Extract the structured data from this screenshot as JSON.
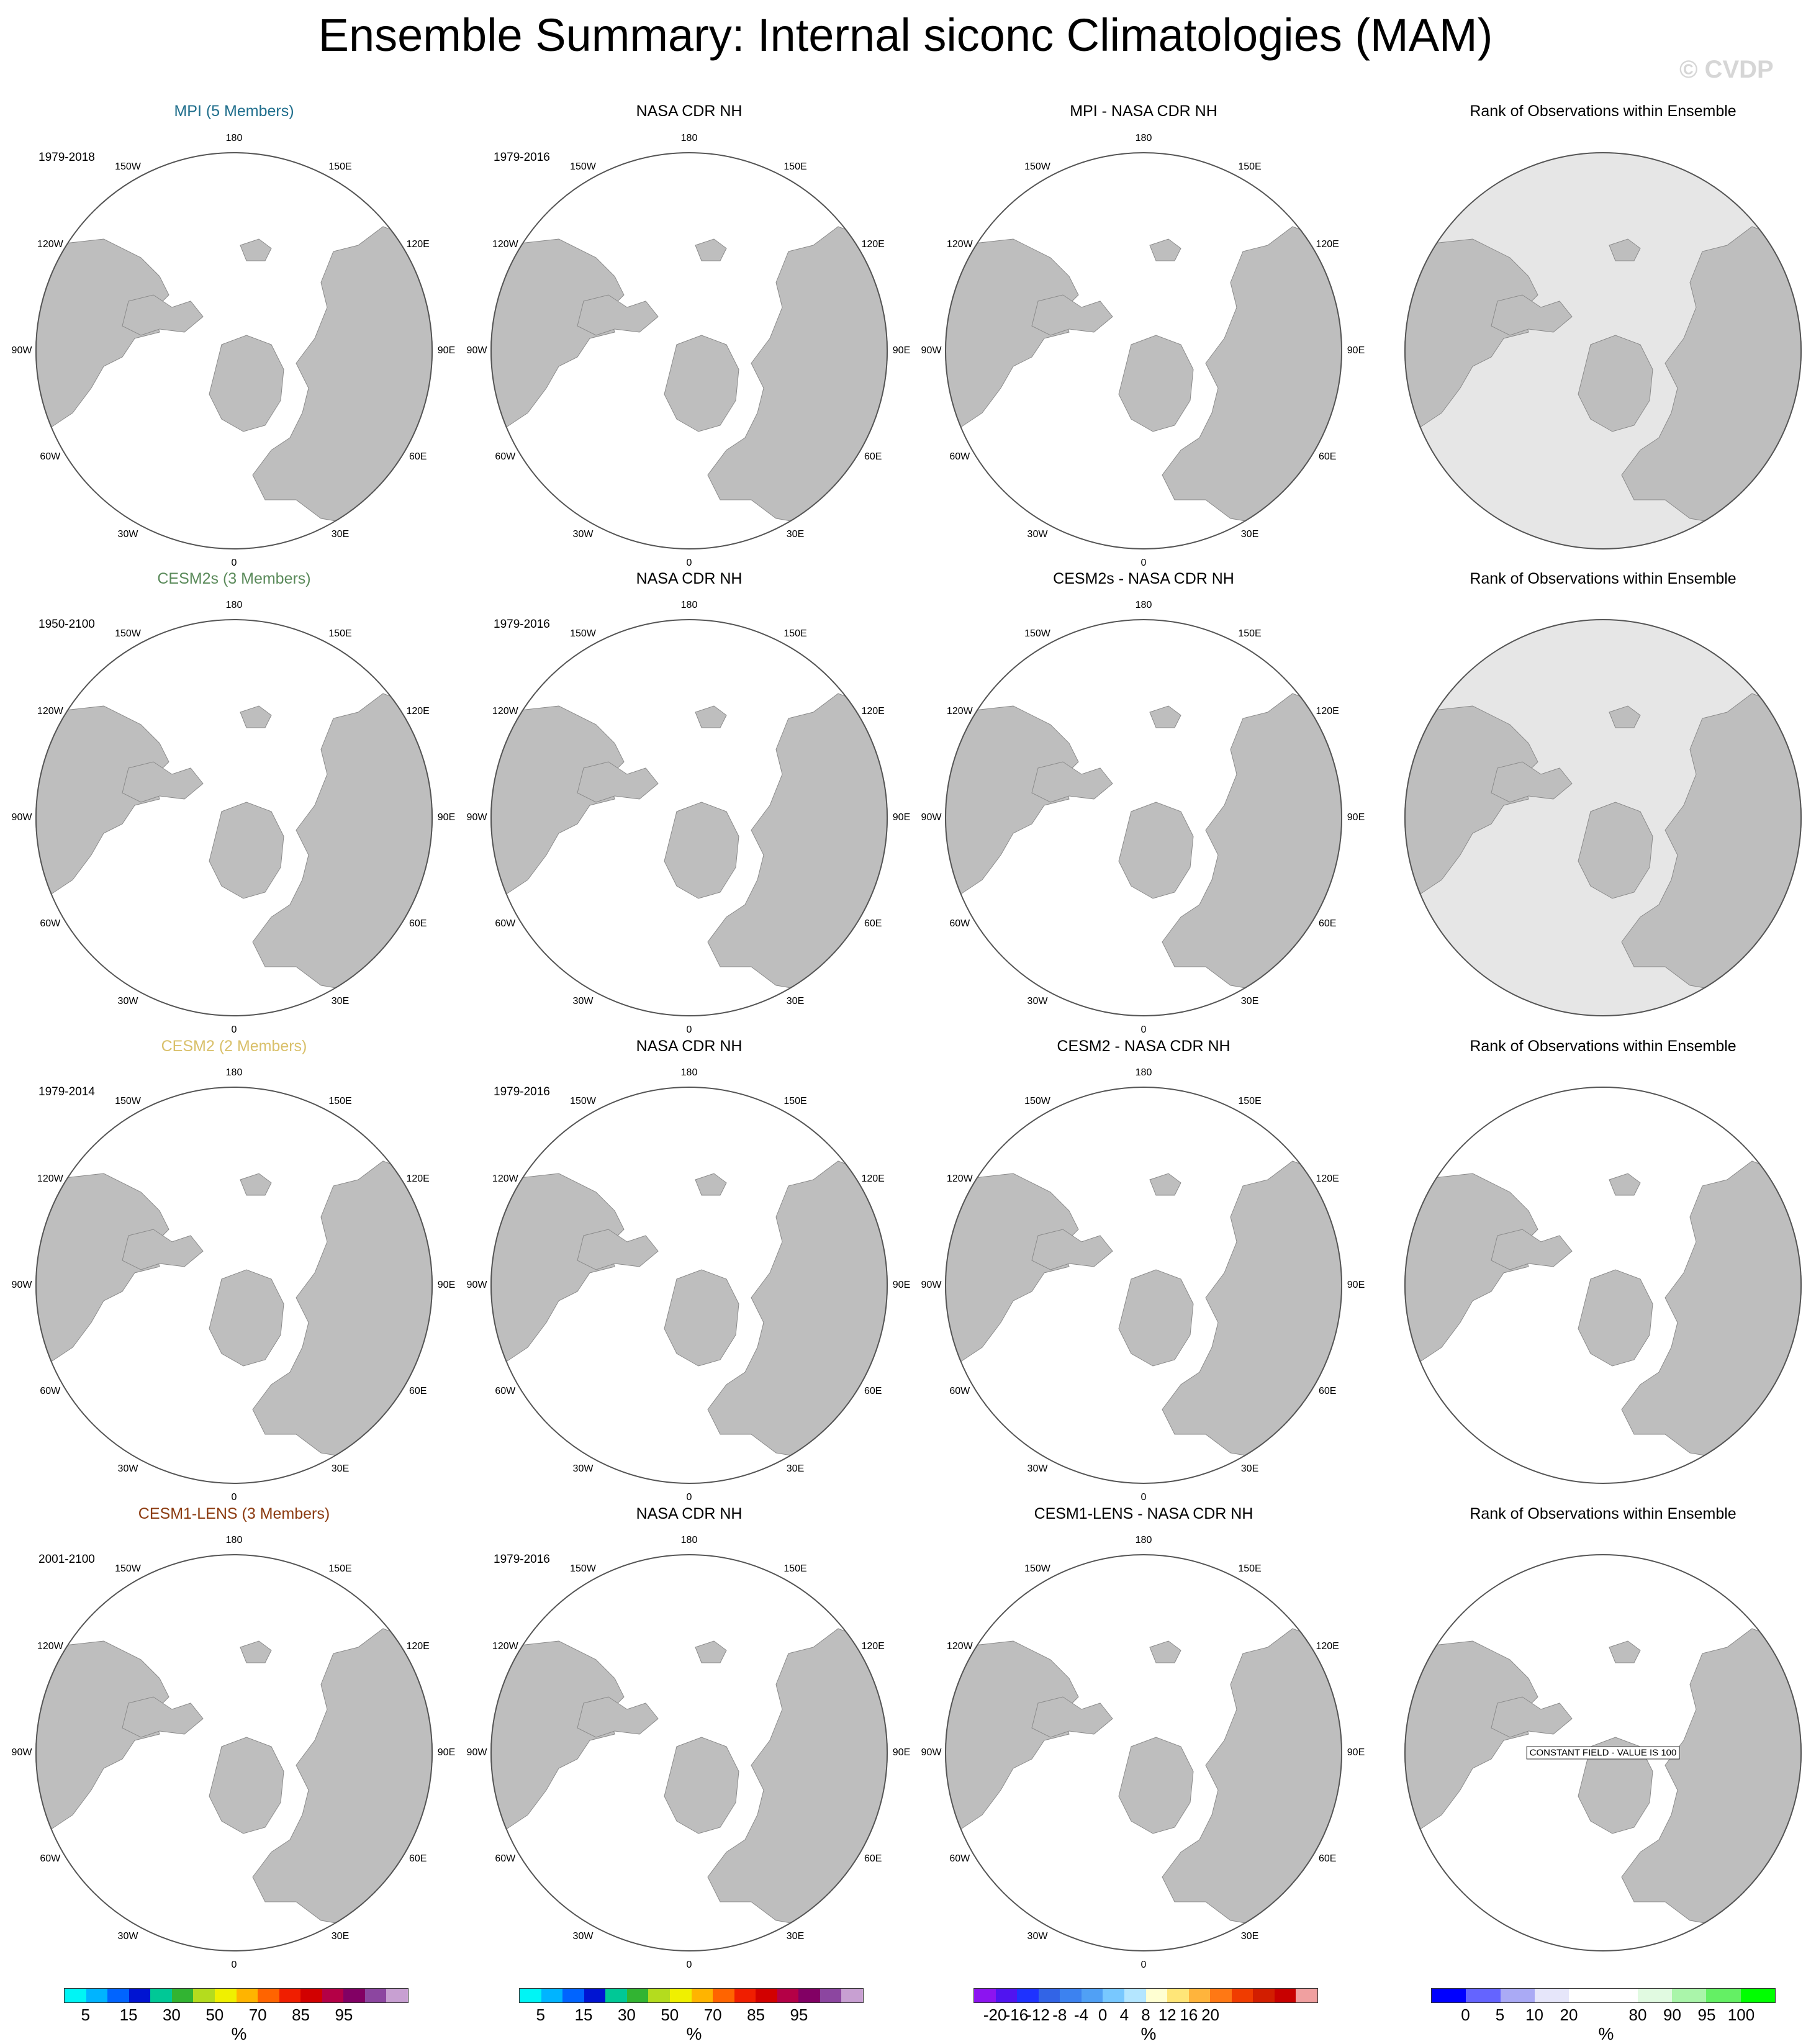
{
  "title": "Ensemble Summary: Internal siconc Climatologies (MAM)",
  "watermark": "© CVDP",
  "colors": {
    "land": "#bebebe",
    "ocean": "#ffffff",
    "highlight_ocean": "#e6e6e6"
  },
  "lon_labels": [
    "180",
    "150E",
    "120E",
    "90E",
    "60E",
    "30E",
    "0",
    "30W",
    "60W",
    "90W",
    "120W",
    "150W"
  ],
  "rows": [
    {
      "col_titles": [
        "MPI (5 Members)",
        "NASA CDR NH",
        "MPI - NASA CDR NH",
        "Rank of Observations within Ensemble"
      ],
      "model_color": "#1f6e8c",
      "model_period": "1979-2018",
      "obs_period": "1979-2016",
      "rank_bg": "grey",
      "constant": ""
    },
    {
      "col_titles": [
        "CESM2s (3 Members)",
        "NASA CDR NH",
        "CESM2s - NASA CDR NH",
        "Rank of Observations within Ensemble"
      ],
      "model_color": "#5a8a5a",
      "model_period": "1950-2100",
      "obs_period": "1979-2016",
      "rank_bg": "grey",
      "constant": ""
    },
    {
      "col_titles": [
        "CESM2 (2 Members)",
        "NASA CDR NH",
        "CESM2 - NASA CDR NH",
        "Rank of Observations within Ensemble"
      ],
      "model_color": "#d9c06a",
      "model_period": "1979-2014",
      "obs_period": "1979-2016",
      "rank_bg": "white",
      "constant": ""
    },
    {
      "col_titles": [
        "CESM1-LENS (3 Members)",
        "NASA CDR NH",
        "CESM1-LENS - NASA CDR NH",
        "Rank of Observations within Ensemble"
      ],
      "model_color": "#8b3a0f",
      "model_period": "2001-2100",
      "obs_period": "1979-2016",
      "rank_bg": "white",
      "constant": "CONSTANT FIELD - VALUE IS 100"
    }
  ],
  "colorbars": [
    {
      "colors": [
        "#00f5f5",
        "#00b4ff",
        "#0064ff",
        "#0014d2",
        "#00c896",
        "#32b432",
        "#b4dc1e",
        "#f0f000",
        "#ffb400",
        "#ff6400",
        "#f01e00",
        "#d20000",
        "#b40046",
        "#820064",
        "#8c46a0",
        "#c8a0d2"
      ],
      "labels": [
        "5",
        "15",
        "30",
        "50",
        "70",
        "85",
        "95"
      ],
      "label_idx": [
        1,
        3,
        5,
        7,
        9,
        11,
        13
      ],
      "unit": "%"
    },
    {
      "colors": [
        "#00f5f5",
        "#00b4ff",
        "#0064ff",
        "#0014d2",
        "#00c896",
        "#32b432",
        "#b4dc1e",
        "#f0f000",
        "#ffb400",
        "#ff6400",
        "#f01e00",
        "#d20000",
        "#b40046",
        "#820064",
        "#8c46a0",
        "#c8a0d2"
      ],
      "labels": [
        "5",
        "15",
        "30",
        "50",
        "70",
        "85",
        "95"
      ],
      "label_idx": [
        1,
        3,
        5,
        7,
        9,
        11,
        13
      ],
      "unit": "%"
    },
    {
      "colors": [
        "#8c14f0",
        "#5014f0",
        "#1e32ff",
        "#3264e6",
        "#3c82f0",
        "#50a0f5",
        "#78c8ff",
        "#b4e6ff",
        "#ffffd2",
        "#ffe678",
        "#ffb43c",
        "#ff7814",
        "#f03c00",
        "#d21e00",
        "#c80000",
        "#f0a0a0"
      ],
      "labels": [
        "-20",
        "-16",
        "-12",
        "-8",
        "-4",
        "0",
        "4",
        "8",
        "12",
        "16",
        "20"
      ],
      "label_idx": [
        1,
        2,
        3,
        4,
        5,
        6,
        7,
        8,
        9,
        10,
        11
      ],
      "unit": "%"
    },
    {
      "colors": [
        "#0000ff",
        "#6464ff",
        "#aaaaf5",
        "#e6e6fa",
        "#ffffff",
        "#ffffff",
        "#e1fae1",
        "#aaf5aa",
        "#64f064",
        "#00ff00"
      ],
      "labels": [
        "0",
        "5",
        "10",
        "20",
        "80",
        "90",
        "95",
        "100"
      ],
      "label_idx": [
        1,
        2,
        3,
        4,
        6,
        7,
        8,
        9
      ],
      "unit": "%"
    }
  ]
}
